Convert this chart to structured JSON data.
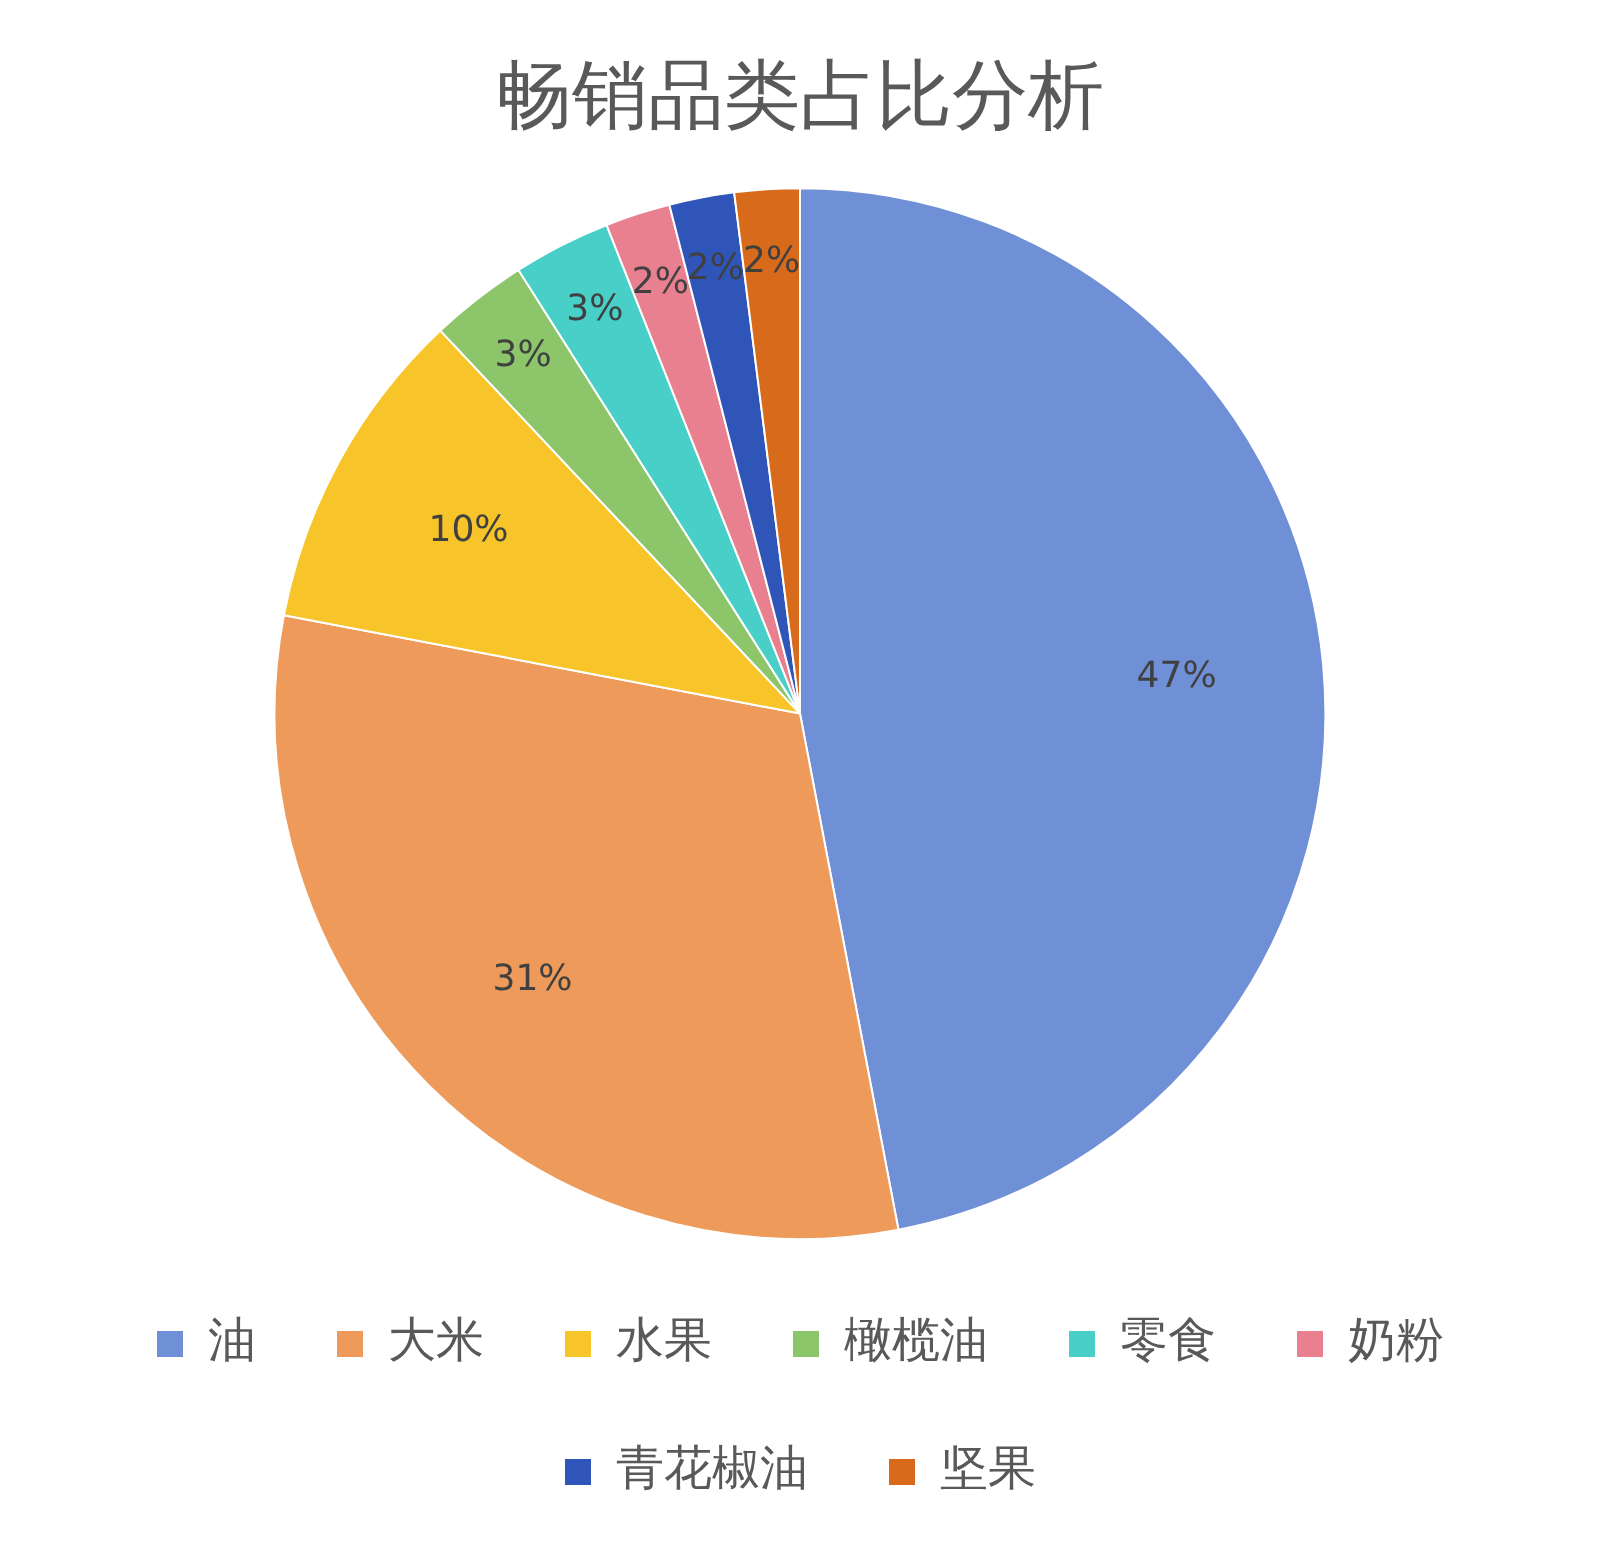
{
  "chart_data": {
    "type": "pie",
    "title": "畅销品类占比分析",
    "categories": [
      "油",
      "大米",
      "水果",
      "橄榄油",
      "零食",
      "奶粉",
      "青花椒油",
      "坚果"
    ],
    "values": [
      47,
      31,
      10,
      3,
      3,
      2,
      2,
      2
    ],
    "colors": [
      "#6f8fd6",
      "#ed9a5a",
      "#f7c52a",
      "#8cc56a",
      "#47cfc8",
      "#e8808f",
      "#2f55b8",
      "#d86a1c"
    ],
    "value_labels": [
      "47%",
      "31%",
      "10%",
      "3%",
      "3%",
      "2%",
      "2%",
      "2%"
    ],
    "legend": "bottom"
  }
}
